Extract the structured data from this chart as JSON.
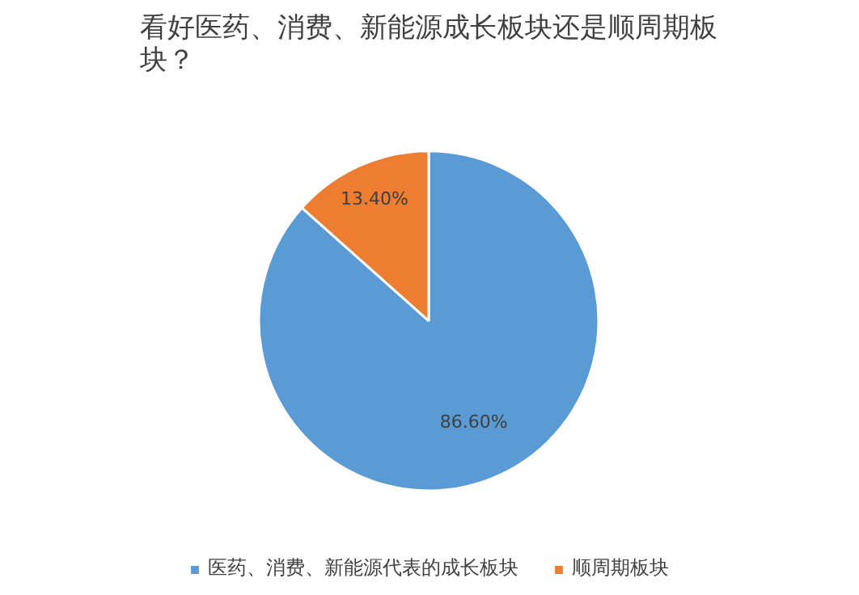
{
  "chart_data": {
    "type": "pie",
    "title": "看好医药、消费、新能源成长板块还是顺周期板块？",
    "categories": [
      "医药、消费、新能源代表的成长板块",
      "顺周期板块"
    ],
    "values": [
      86.6,
      13.4
    ],
    "colors": [
      "#5b9bd5",
      "#ed7d31"
    ],
    "value_labels": [
      "86.60%",
      "13.40%"
    ],
    "legend": "bottom"
  }
}
